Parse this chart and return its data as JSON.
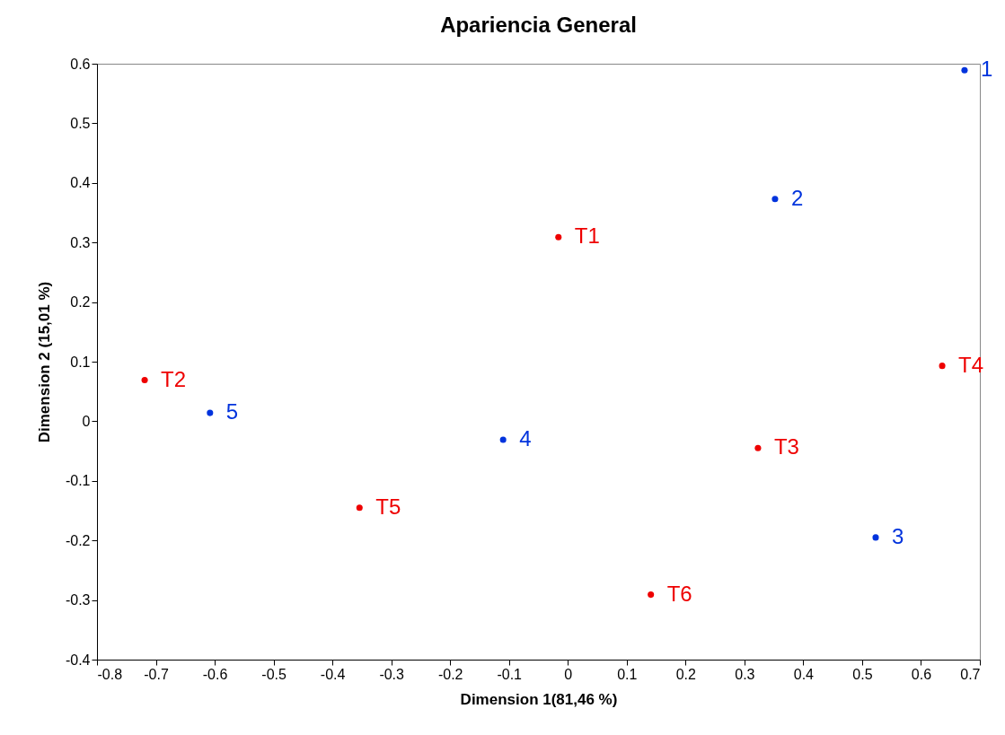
{
  "chart_data": {
    "type": "scatter",
    "title": "Apariencia General",
    "xlabel": "Dimension 1(81,46 %)",
    "ylabel": "Dimension 2 (15,01 %)",
    "xlim": [
      -0.8,
      0.7
    ],
    "xticks": [
      -0.8,
      -0.7,
      -0.6,
      -0.5,
      -0.4,
      -0.3,
      -0.2,
      -0.1,
      0,
      0.1,
      0.2,
      0.3,
      0.4,
      0.5,
      0.6,
      0.7
    ],
    "ylim": [
      -0.4,
      0.6
    ],
    "yticks": [
      -0.4,
      -0.3,
      -0.2,
      -0.1,
      0,
      0.1,
      0.2,
      0.3,
      0.4,
      0.5,
      0.6
    ],
    "grid": false,
    "marker": "circle",
    "series": [
      {
        "name": "1",
        "color": "#0033dd",
        "x": [
          0.674
        ],
        "values": [
          0.589
        ]
      },
      {
        "name": "2",
        "color": "#0033dd",
        "x": [
          0.352
        ],
        "values": [
          0.373
        ]
      },
      {
        "name": "3",
        "color": "#0033dd",
        "x": [
          0.523
        ],
        "values": [
          -0.195
        ]
      },
      {
        "name": "4",
        "color": "#0033dd",
        "x": [
          -0.11
        ],
        "values": [
          -0.031
        ]
      },
      {
        "name": "5",
        "color": "#0033dd",
        "x": [
          -0.608
        ],
        "values": [
          0.014
        ]
      },
      {
        "name": "T1",
        "color": "#ee0000",
        "x": [
          -0.016
        ],
        "values": [
          0.309
        ]
      },
      {
        "name": "T2",
        "color": "#ee0000",
        "x": [
          -0.719
        ],
        "values": [
          0.069
        ]
      },
      {
        "name": "T3",
        "color": "#ee0000",
        "x": [
          0.323
        ],
        "values": [
          -0.045
        ]
      },
      {
        "name": "T4",
        "color": "#ee0000",
        "x": [
          0.636
        ],
        "values": [
          0.093
        ]
      },
      {
        "name": "T5",
        "color": "#ee0000",
        "x": [
          -0.354
        ],
        "values": [
          -0.145
        ]
      },
      {
        "name": "T6",
        "color": "#ee0000",
        "x": [
          0.141
        ],
        "values": [
          -0.291
        ]
      }
    ]
  }
}
